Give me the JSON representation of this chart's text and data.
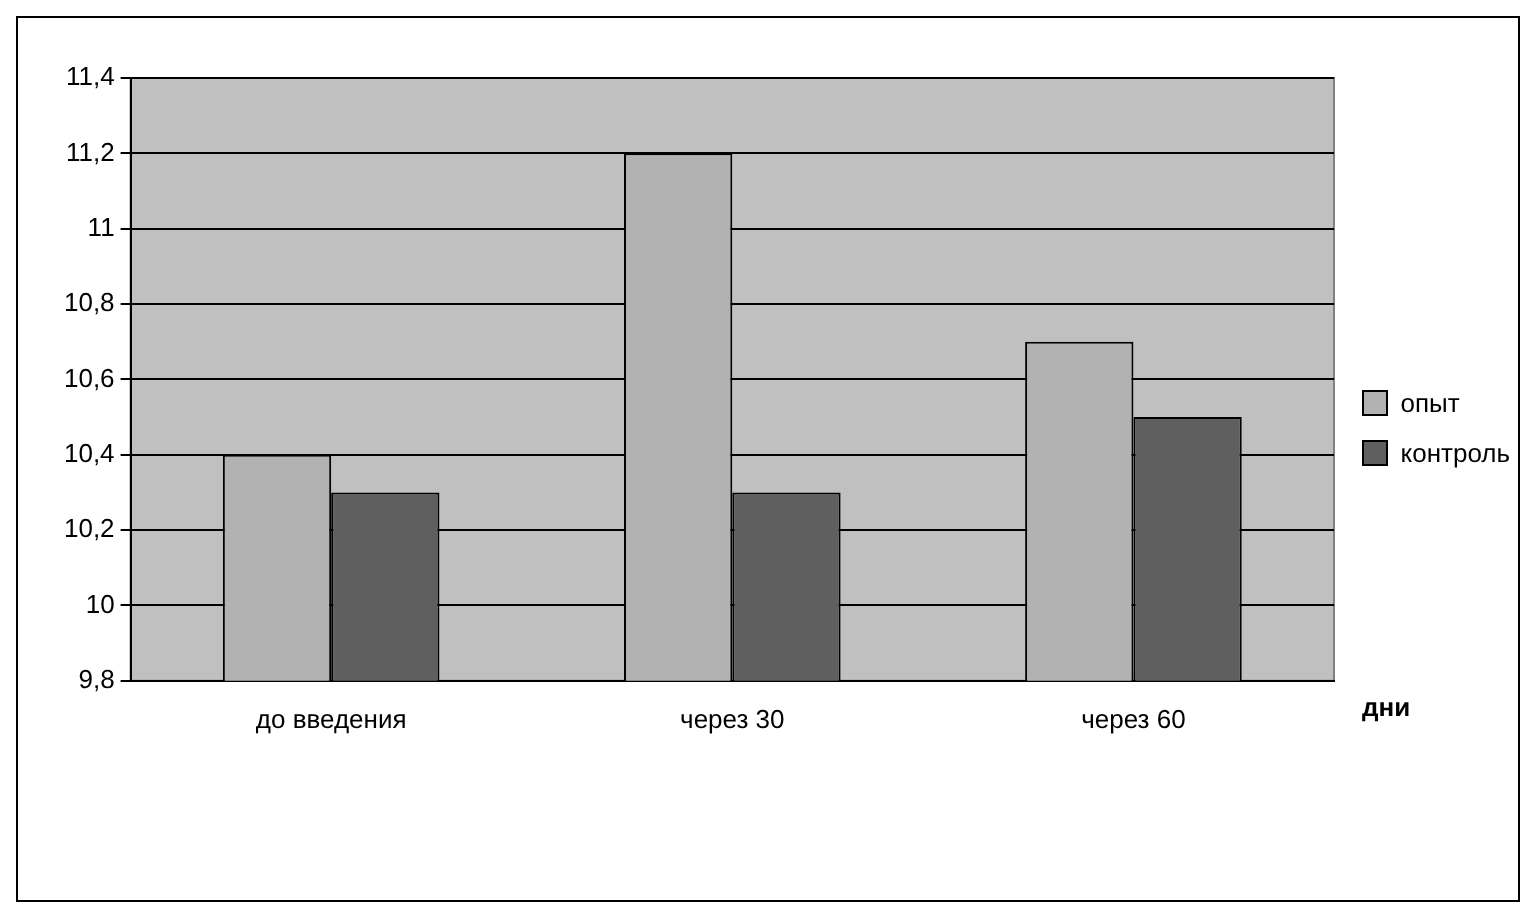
{
  "chart_data": {
    "type": "bar",
    "xlabel": "дни",
    "categories": [
      "до введения",
      "через 30",
      "через 60"
    ],
    "series": [
      {
        "name": "опыт",
        "color": "#b2b2b2",
        "values": [
          10.4,
          11.2,
          10.7
        ]
      },
      {
        "name": "контроль",
        "color": "#5f5f5f",
        "values": [
          10.3,
          10.3,
          10.5
        ]
      }
    ],
    "ylim": [
      9.8,
      11.4
    ],
    "yticks": [
      {
        "value": 9.8,
        "label": "9,8"
      },
      10,
      {
        "value": 10.2,
        "label": "10,2"
      },
      {
        "value": 10.4,
        "label": "10,4"
      },
      {
        "value": 10.6,
        "label": "10,6"
      },
      {
        "value": 10.8,
        "label": "10,8"
      },
      11,
      {
        "value": 11.2,
        "label": "11,2"
      },
      {
        "value": 11.4,
        "label": "11,4"
      }
    ],
    "grid": "y",
    "legend": "right"
  }
}
